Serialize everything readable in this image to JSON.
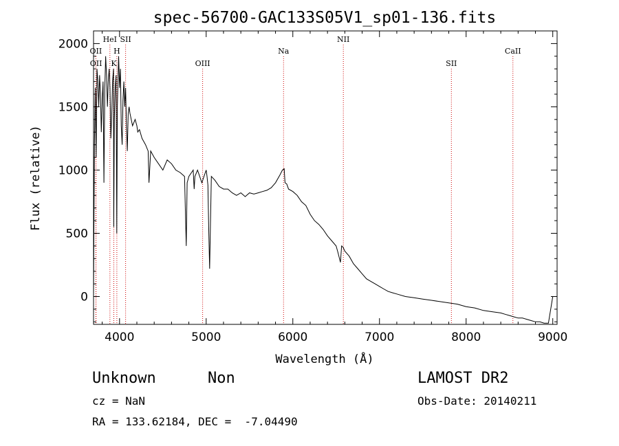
{
  "chart_data": {
    "type": "line",
    "title": "spec-56700-GAC133S05V1_sp01-136.fits",
    "xlabel": "Wavelength (Å)",
    "ylabel": "Flux (relative)",
    "xlim": [
      3700,
      9050
    ],
    "ylim": [
      -220,
      2100
    ],
    "xticks": [
      4000,
      5000,
      6000,
      7000,
      8000,
      9000
    ],
    "yticks": [
      0,
      500,
      1000,
      1500,
      2000
    ],
    "grid": false,
    "series": [
      {
        "x": [
          3700,
          3705,
          3710,
          3720,
          3730,
          3740,
          3750,
          3760,
          3770,
          3780,
          3790,
          3800,
          3810,
          3820,
          3830,
          3840,
          3850,
          3860,
          3870,
          3880,
          3890,
          3900,
          3910,
          3920,
          3930,
          3933,
          3940,
          3950,
          3960,
          3968,
          3975,
          3990,
          4000,
          4010,
          4020,
          4030,
          4040,
          4050,
          4060,
          4070,
          4080,
          4090,
          4100,
          4110,
          4120,
          4150,
          4180,
          4200,
          4210,
          4230,
          4260,
          4300,
          4330,
          4340,
          4360,
          4400,
          4450,
          4500,
          4550,
          4600,
          4650,
          4700,
          4750,
          4770,
          4780,
          4800,
          4850,
          4861,
          4870,
          4900,
          4950,
          4990,
          5000,
          5010,
          5020,
          5030,
          5040,
          5060,
          5100,
          5150,
          5200,
          5250,
          5300,
          5350,
          5400,
          5450,
          5500,
          5550,
          5600,
          5650,
          5700,
          5750,
          5800,
          5850,
          5880,
          5900,
          5910,
          5930,
          5950,
          6000,
          6050,
          6100,
          6150,
          6200,
          6250,
          6300,
          6350,
          6400,
          6450,
          6500,
          6520,
          6550,
          6563,
          6580,
          6600,
          6650,
          6700,
          6750,
          6800,
          6850,
          6900,
          6950,
          7000,
          7050,
          7100,
          7150,
          7200,
          7300,
          7400,
          7500,
          7600,
          7700,
          7800,
          7900,
          8000,
          8100,
          8200,
          8300,
          8400,
          8450,
          8500,
          8550,
          8600,
          8650,
          8700,
          8750,
          8800,
          8850,
          8900,
          8950,
          9000
        ],
        "values": [
          0,
          600,
          1200,
          1650,
          1100,
          1800,
          1700,
          1500,
          1750,
          1600,
          1300,
          1550,
          1700,
          900,
          1650,
          1900,
          1750,
          1500,
          1700,
          1800,
          1650,
          1250,
          1450,
          1700,
          1800,
          550,
          1400,
          1650,
          1750,
          500,
          1500,
          1900,
          1650,
          1800,
          1350,
          1200,
          1550,
          1700,
          1500,
          1650,
          1350,
          1150,
          1450,
          1500,
          1450,
          1350,
          1400,
          1350,
          1300,
          1320,
          1250,
          1200,
          1150,
          900,
          1150,
          1100,
          1050,
          1000,
          1080,
          1050,
          1000,
          980,
          950,
          400,
          900,
          950,
          1000,
          850,
          950,
          1000,
          900,
          980,
          1000,
          950,
          880,
          500,
          220,
          950,
          920,
          870,
          850,
          850,
          820,
          800,
          820,
          790,
          820,
          810,
          820,
          830,
          840,
          860,
          900,
          960,
          1000,
          1010,
          900,
          890,
          850,
          830,
          800,
          750,
          720,
          650,
          600,
          570,
          530,
          480,
          440,
          400,
          350,
          270,
          400,
          390,
          360,
          320,
          260,
          220,
          180,
          140,
          120,
          100,
          80,
          60,
          40,
          30,
          20,
          0,
          -10,
          -20,
          -30,
          -40,
          -50,
          -60,
          -80,
          -90,
          -110,
          -120,
          -130,
          -140,
          -150,
          -160,
          -170,
          -170,
          -180,
          -190,
          -200,
          -200,
          -210,
          -210,
          0
        ]
      }
    ],
    "spectral_lines": [
      {
        "label": "OII",
        "wavelength": 3727,
        "row": 2
      },
      {
        "label": "OII",
        "wavelength": 3729,
        "row": 3
      },
      {
        "label": "HeI",
        "wavelength": 3889,
        "row": 1
      },
      {
        "label": "H",
        "wavelength": 3969,
        "row": 2
      },
      {
        "label": "K",
        "wavelength": 3934,
        "row": 3
      },
      {
        "label": "SII",
        "wavelength": 4070,
        "row": 1
      },
      {
        "label": "OIII",
        "wavelength": 4959,
        "row": 3
      },
      {
        "label": "Na",
        "wavelength": 5893,
        "row": 2
      },
      {
        "label": "NII",
        "wavelength": 6583,
        "row": 1
      },
      {
        "label": "SII",
        "wavelength": 7830,
        "row": 3
      },
      {
        "label": "CaII",
        "wavelength": 8540,
        "row": 2
      }
    ]
  },
  "info": {
    "class": "Unknown",
    "subclass": "Non",
    "survey": "LAMOST DR2",
    "cz": "cz = NaN",
    "obs_date": "Obs-Date: 20140211",
    "coords": "RA = 133.62184, DEC =  -7.04490"
  }
}
